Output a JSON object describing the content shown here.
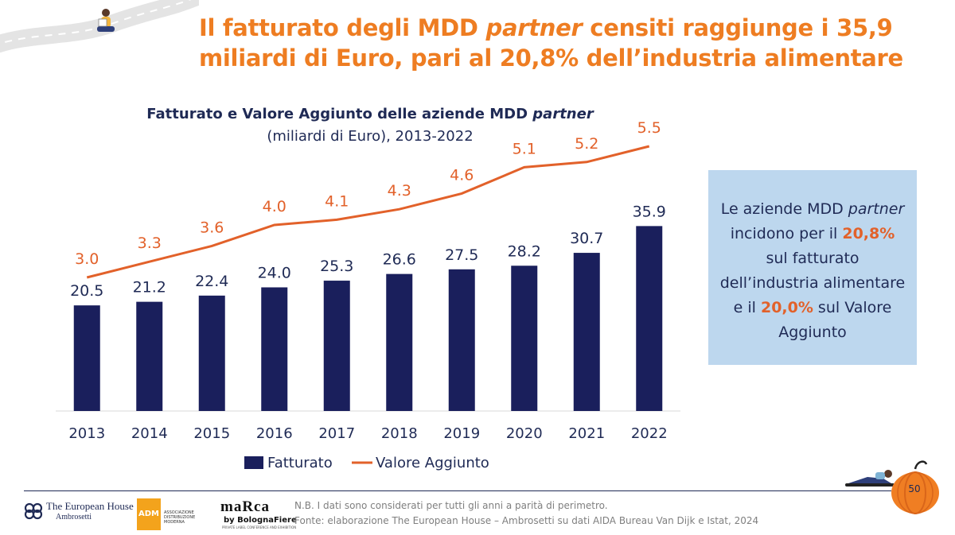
{
  "slide": {
    "title_part1": "Il fatturato degli MDD ",
    "title_italic": "partner",
    "title_part2": " censiti raggiunge i 35,9 miliardi di Euro, pari al 20,8% dell’industria alimentare",
    "page_number": "50"
  },
  "chart_header": {
    "line1_text": "Fatturato e Valore Aggiunto delle aziende MDD ",
    "line1_italic": "partner",
    "line2": "(miliardi di Euro), 2013-2022"
  },
  "chart_data": {
    "type": "bar",
    "categories": [
      "2013",
      "2014",
      "2015",
      "2016",
      "2017",
      "2018",
      "2019",
      "2020",
      "2021",
      "2022"
    ],
    "series": [
      {
        "name": "Fatturato",
        "type": "bar",
        "color": "#1a1f5c",
        "values": [
          20.5,
          21.2,
          22.4,
          24.0,
          25.3,
          26.6,
          27.5,
          28.2,
          30.7,
          35.9
        ],
        "labels": [
          "20.5",
          "21.2",
          "22.4",
          "24.0",
          "25.3",
          "26.6",
          "27.5",
          "28.2",
          "30.7",
          "35.9"
        ]
      },
      {
        "name": "Valore Aggiunto",
        "type": "line",
        "color": "#e2612a",
        "values": [
          3.0,
          3.3,
          3.6,
          4.0,
          4.1,
          4.3,
          4.6,
          5.1,
          5.2,
          5.5
        ],
        "labels": [
          "3.0",
          "3.3",
          "3.6",
          "4.0",
          "4.1",
          "4.3",
          "4.6",
          "5.1",
          "5.2",
          "5.5"
        ]
      }
    ],
    "grid": false,
    "legend_position": "bottom"
  },
  "info_box": {
    "line1": "Le aziende MDD ",
    "italic": "partner",
    "line2": " incidono per il ",
    "highlight1": "20,8%",
    "line3": " sul fatturato dell’industria alimentare e il ",
    "highlight2": "20,0%",
    "line4": " sul Valore Aggiunto",
    "highlight_color": "#e2612a",
    "background_color": "#bdd7ee"
  },
  "footer": {
    "note": "N.B. I dati sono considerati per tutti gli anni a parità di perimetro.",
    "source": "Fonte: elaborazione The European House – Ambrosetti su dati AIDA Bureau Van Dijk e Istat, 2024"
  },
  "logos": {
    "teh_name": "The European House",
    "teh_sub": "Ambrosetti",
    "adm_abbr": "ADM",
    "adm_text": "ASSOCIAZIONE DISTRIBUZIONE MODERNA",
    "marca_word": "maRca",
    "marca_by": "by BolognaFiere",
    "marca_small": "PRIVATE LABEL CONFERENCE AND EXHIBITION"
  },
  "colors": {
    "title": "#ee7d22",
    "navy": "#1f2a55",
    "bar": "#1a1f5c",
    "line": "#e2612a"
  }
}
